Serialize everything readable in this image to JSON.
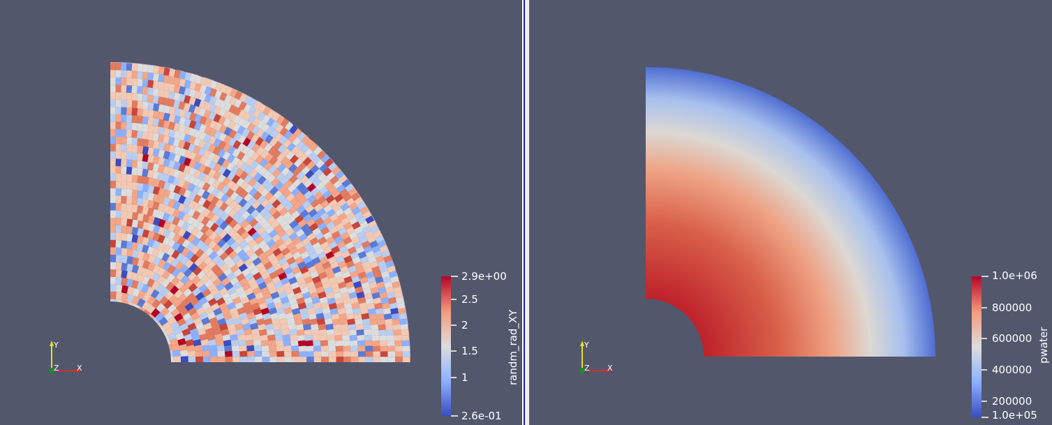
{
  "colors": {
    "background": "#52576c",
    "cool": "#3b4cc0",
    "neutral": "#dddddd",
    "warm": "#b40426"
  },
  "left_view": {
    "field_name": "randm_rad_XY",
    "colorbar": {
      "max_label": "2.9e+00",
      "min_label": "2.6e-01",
      "ticks": [
        {
          "value": 2.5,
          "label": "2.5"
        },
        {
          "value": 2,
          "label": "2"
        },
        {
          "value": 1.5,
          "label": "1.5"
        },
        {
          "value": 1,
          "label": "1"
        }
      ],
      "range": [
        0.26,
        2.9
      ]
    },
    "axes": {
      "x": "X",
      "y": "Y",
      "z": "Z"
    }
  },
  "right_view": {
    "field_name": "pwater",
    "colorbar": {
      "max_label": "1.0e+06",
      "min_label": "1.0e+05",
      "ticks": [
        {
          "value": 800000,
          "label": "800000"
        },
        {
          "value": 600000,
          "label": "600000"
        },
        {
          "value": 400000,
          "label": "400000"
        },
        {
          "value": 200000,
          "label": "200000"
        }
      ],
      "range": [
        100000,
        1000000
      ]
    },
    "axes": {
      "x": "X",
      "y": "Y",
      "z": "Z"
    }
  }
}
